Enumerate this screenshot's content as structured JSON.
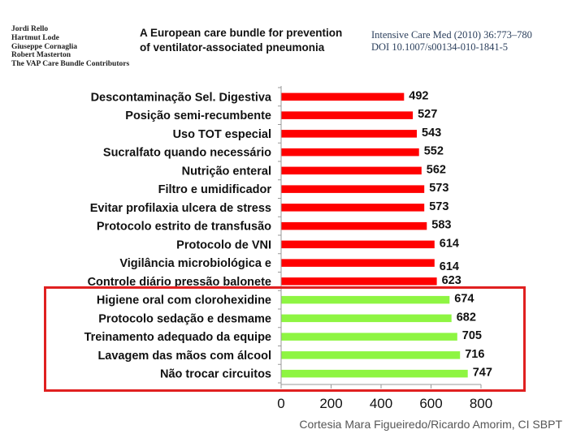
{
  "header": {
    "authors": [
      "Jordi Rello",
      "Hartmut Lode",
      "Giuseppe Cornaglia",
      "Robert Masterton",
      "The VAP Care Bundle Contributors"
    ],
    "paper_title_lines": [
      "A European care bundle for prevention",
      "of ventilator-associated pneumonia"
    ],
    "journal_lines": [
      "Intensive Care Med (2010) 36:773–780",
      "DOI 10.1007/s00134-010-1841-5"
    ]
  },
  "footer": {
    "credit": "Cortesia Mara Figueiredo/Ricardo Amorim, CI SBPT"
  },
  "chart_data": {
    "type": "bar",
    "orientation": "horizontal",
    "categories": [
      "Descontaminação Sel. Digestiva",
      "Posição semi-recumbente",
      "Uso TOT especial",
      "Sucralfato quando necessário",
      "Nutrição enteral",
      "Filtro e umidificador",
      "Evitar profilaxia ulcera de stress",
      "Protocolo estrito de transfusão",
      "Protocolo de VNI",
      "Vigilância microbiológica e",
      "Controle diário pressão balonete",
      "Higiene oral com clorohexidine",
      "Protocolo sedação e desmame",
      "Treinamento adequado da equipe",
      "Lavagem das mãos com álcool",
      "Não trocar circuitos"
    ],
    "values": [
      492,
      527,
      543,
      552,
      562,
      573,
      573,
      583,
      614,
      614,
      623,
      674,
      682,
      705,
      716,
      747
    ],
    "value_labels": [
      "492",
      "527",
      "543",
      "552",
      "562",
      "573",
      "573",
      "583",
      "614",
      "614",
      "623",
      "674",
      "682",
      "705",
      "716",
      "747"
    ],
    "colors": [
      "#ff0000",
      "#ff0000",
      "#ff0000",
      "#ff0000",
      "#ff0000",
      "#ff0000",
      "#ff0000",
      "#ff0000",
      "#ff0000",
      "#ff0000",
      "#ff0000",
      "#8ef542",
      "#8ef542",
      "#8ef542",
      "#8ef542",
      "#8ef542"
    ],
    "highlighted_categories": [
      "Higiene oral com clorohexidine",
      "Protocolo sedação e desmame",
      "Treinamento adequado da equipe",
      "Lavagem das mãos com álcool",
      "Não trocar circuitos"
    ],
    "highlight_color": "#e02020",
    "xlim": [
      0,
      800
    ],
    "xticks": [
      0,
      200,
      400,
      600,
      800
    ],
    "grid": false,
    "title": "",
    "xlabel": "",
    "ylabel": ""
  }
}
